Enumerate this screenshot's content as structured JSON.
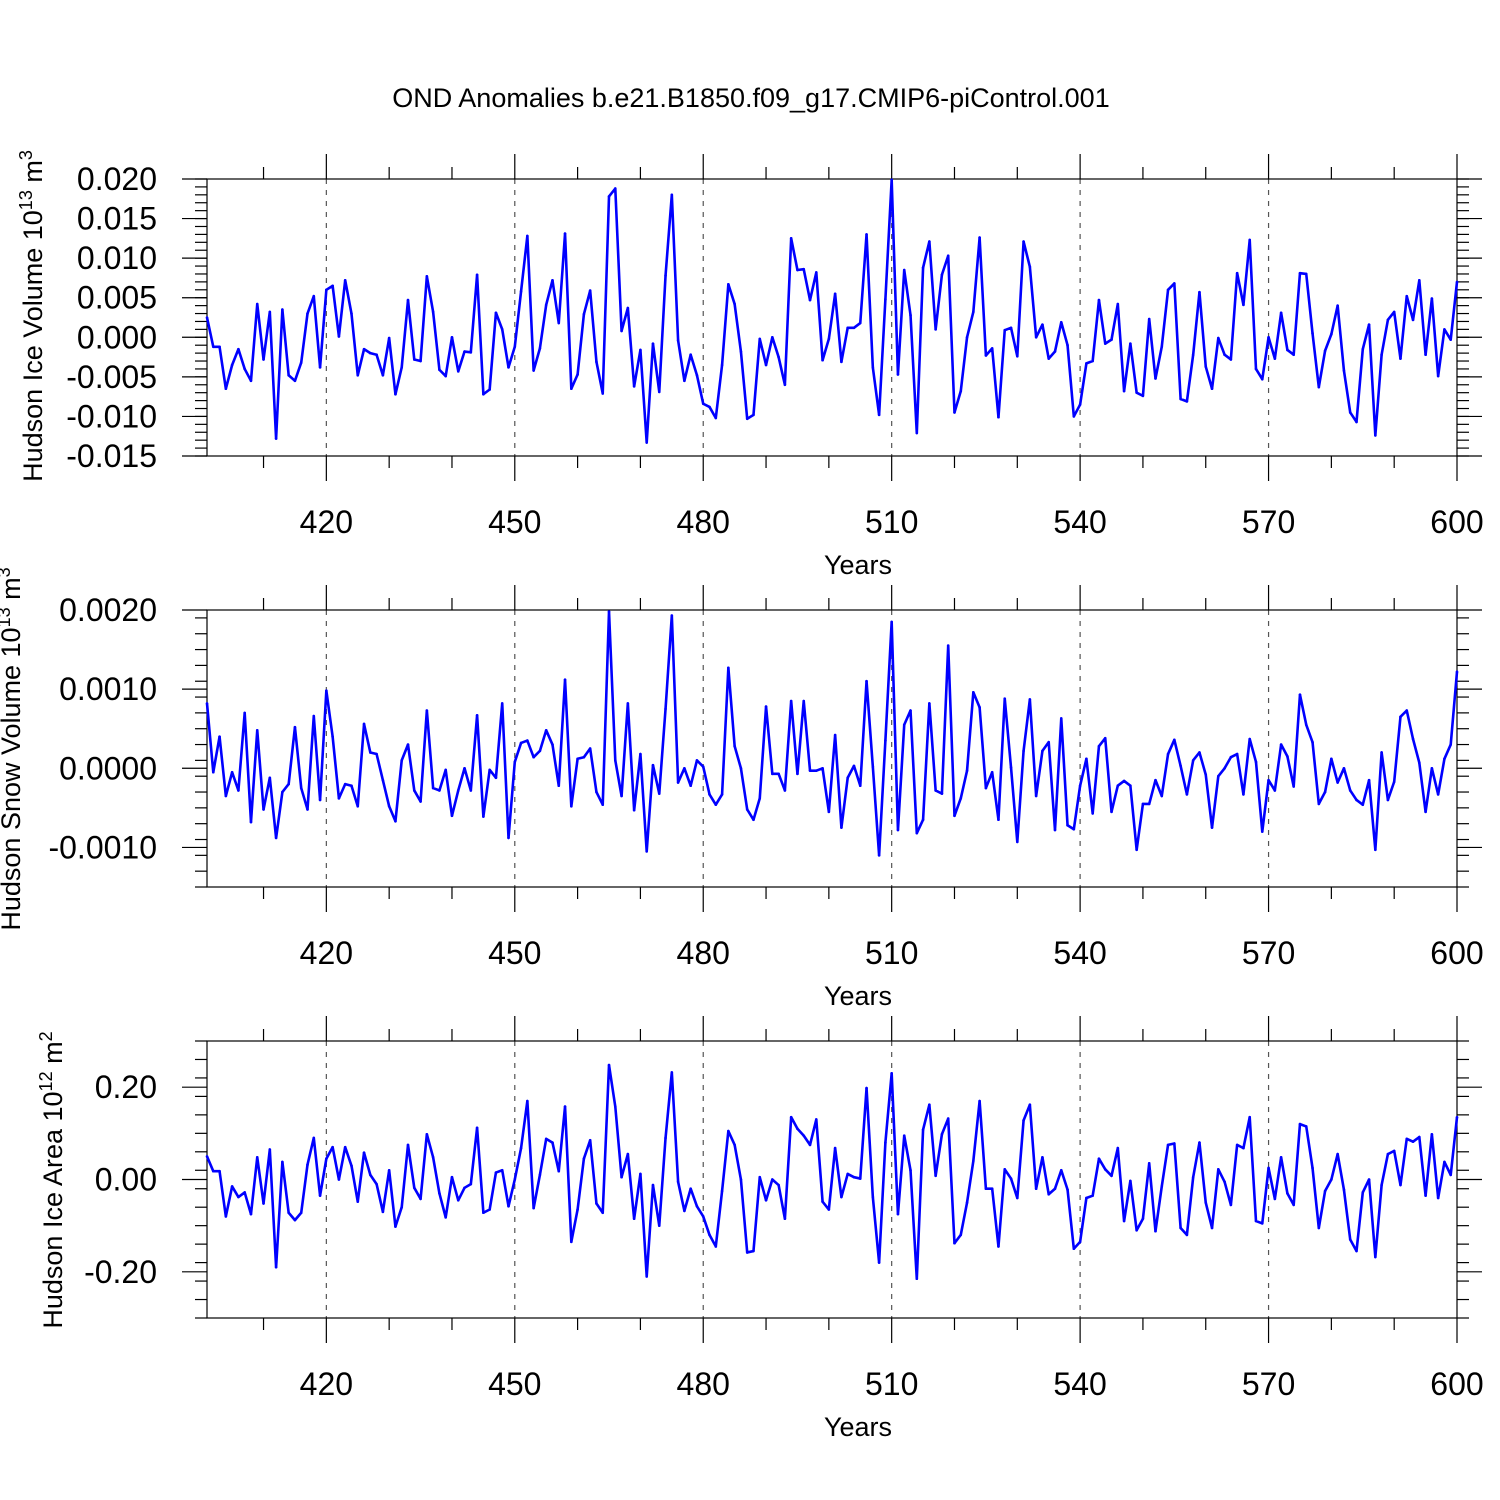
{
  "title": "OND Anomalies b.e21.B1850.f09_g17.CMIP6-piControl.001",
  "colors": {
    "series": "#0000ff",
    "axis": "#000000",
    "grid": "#555555"
  },
  "chart_data": [
    {
      "type": "line",
      "name": "ice-volume",
      "ylabel": {
        "text": "Hudson Ice Volume 10",
        "exp": "13",
        "unit": " m",
        "unit_exp": "3"
      },
      "xlabel": "Years",
      "xlim": [
        401,
        600
      ],
      "ylim": [
        -0.015,
        0.02
      ],
      "xticks": [
        420,
        450,
        480,
        510,
        540,
        570,
        600
      ],
      "xtick_labels": [
        "420",
        "450",
        "480",
        "510",
        "540",
        "570",
        "600"
      ],
      "yticks": [
        -0.015,
        -0.01,
        -0.005,
        0.0,
        0.005,
        0.01,
        0.015,
        0.02
      ],
      "ytick_labels": [
        "-0.015",
        "-0.010",
        "-0.005",
        "0.000",
        "0.005",
        "0.010",
        "0.015",
        "0.020"
      ],
      "grid": "dashed vertical at major x ticks",
      "x_start": 401,
      "values": [
        0.0025,
        -0.0012,
        -0.0012,
        -0.0065,
        -0.0035,
        -0.0015,
        -0.004,
        -0.0055,
        0.0042,
        -0.0028,
        0.0032,
        -0.0128,
        0.0035,
        -0.0048,
        -0.0055,
        -0.0032,
        0.003,
        0.0052,
        -0.0038,
        0.006,
        0.0065,
        0.0001,
        0.0072,
        0.003,
        -0.0048,
        -0.0015,
        -0.002,
        -0.0022,
        -0.0048,
        -0.0001,
        -0.0072,
        -0.0038,
        0.0047,
        -0.0028,
        -0.003,
        0.0077,
        0.0032,
        -0.0041,
        -0.0049,
        0.0,
        -0.0043,
        -0.0018,
        -0.0019,
        0.0079,
        -0.0072,
        -0.0066,
        0.0031,
        0.001,
        -0.0038,
        -0.0012,
        0.0058,
        0.0128,
        -0.0042,
        -0.0014,
        0.0041,
        0.0072,
        0.0018,
        0.0131,
        -0.0065,
        -0.0047,
        0.0029,
        0.0059,
        -0.0031,
        -0.0071,
        0.0178,
        0.0188,
        0.0008,
        0.0037,
        -0.0062,
        -0.0016,
        -0.0133,
        -0.0008,
        -0.0069,
        0.0078,
        0.018,
        -0.0004,
        -0.0055,
        -0.0022,
        -0.0048,
        -0.0084,
        -0.0088,
        -0.0102,
        -0.0035,
        0.0067,
        0.0042,
        -0.0018,
        -0.0103,
        -0.0098,
        -0.0002,
        -0.0035,
        0.0,
        -0.0025,
        -0.006,
        0.0125,
        0.0085,
        0.0086,
        0.0047,
        0.0082,
        -0.0029,
        -0.0002,
        0.0055,
        -0.0031,
        0.0012,
        0.0012,
        0.0018,
        0.013,
        -0.0038,
        -0.0098,
        0.0048,
        0.0199,
        -0.0047,
        0.0085,
        0.0028,
        -0.0121,
        0.0088,
        0.0121,
        0.001,
        0.0079,
        0.0103,
        -0.0095,
        -0.0068,
        0.0,
        0.0032,
        0.0126,
        -0.0023,
        -0.0014,
        -0.0101,
        0.0009,
        0.0012,
        -0.0024,
        0.0121,
        0.0089,
        0.0,
        0.0016,
        -0.0027,
        -0.0018,
        0.0019,
        -0.001,
        -0.01,
        -0.0085,
        -0.0033,
        -0.003,
        0.0047,
        -0.0008,
        -0.0003,
        0.0042,
        -0.0068,
        -0.0008,
        -0.007,
        -0.0074,
        0.0023,
        -0.0052,
        -0.0012,
        0.006,
        0.0068,
        -0.0078,
        -0.0081,
        -0.0022,
        0.0057,
        -0.0037,
        -0.0065,
        -0.0001,
        -0.0022,
        -0.0028,
        0.0081,
        0.0041,
        0.0123,
        -0.004,
        -0.0053,
        0.0,
        -0.0027,
        0.0031,
        -0.0016,
        -0.0022,
        0.0081,
        0.008,
        0.0005,
        -0.0063,
        -0.0017,
        0.0004,
        0.004,
        -0.0042,
        -0.0095,
        -0.0107,
        -0.0015,
        0.0016,
        -0.0124,
        -0.0022,
        0.0022,
        0.0032,
        -0.0027,
        0.0052,
        0.0022,
        0.0072,
        -0.0022,
        0.0049,
        -0.0049,
        0.001,
        -0.0003,
        0.007
      ]
    },
    {
      "type": "line",
      "name": "snow-volume",
      "ylabel": {
        "text": "Hudson Snow Volume 10",
        "exp": "13",
        "unit": " m",
        "unit_exp": "3"
      },
      "xlabel": "Years",
      "xlim": [
        401,
        600
      ],
      "ylim": [
        -0.0015,
        0.002
      ],
      "xticks": [
        420,
        450,
        480,
        510,
        540,
        570,
        600
      ],
      "xtick_labels": [
        "420",
        "450",
        "480",
        "510",
        "540",
        "570",
        "600"
      ],
      "yticks": [
        -0.001,
        0.0,
        0.001,
        0.002
      ],
      "ytick_labels": [
        "-0.0010",
        "0.0000",
        "0.0010",
        "0.0020"
      ],
      "grid": "dashed vertical at major x ticks",
      "x_start": 401,
      "values": [
        0.00082,
        -5e-05,
        0.0004,
        -0.00035,
        -5e-05,
        -0.00028,
        0.0007,
        -0.00068,
        0.00048,
        -0.00052,
        -0.00012,
        -0.00088,
        -0.0003,
        -0.0002,
        0.00052,
        -0.00025,
        -0.00052,
        0.00066,
        -0.0004,
        0.00098,
        0.0004,
        -0.00038,
        -0.0002,
        -0.00022,
        -0.00048,
        0.00056,
        0.0002,
        0.00018,
        -0.00015,
        -0.00048,
        -0.00067,
        0.0001,
        0.0003,
        -0.00028,
        -0.00042,
        0.00073,
        -0.00025,
        -0.00028,
        -2e-05,
        -0.0006,
        -0.00028,
        0.0,
        -0.00028,
        0.00067,
        -0.00061,
        -2e-05,
        -0.00012,
        0.00082,
        -0.00088,
        8e-05,
        0.00032,
        0.00035,
        0.00014,
        0.00022,
        0.00048,
        0.0003,
        -0.00022,
        0.00112,
        -0.00048,
        0.00012,
        0.00014,
        0.00025,
        -0.0003,
        -0.00046,
        0.00198,
        0.0001,
        -0.00035,
        0.00082,
        -0.00053,
        0.00018,
        -0.00105,
        4e-05,
        -0.00032,
        0.00075,
        0.00193,
        -0.00018,
        0.0,
        -0.00022,
        0.0001,
        2e-05,
        -0.00033,
        -0.00046,
        -0.00033,
        0.00127,
        0.00028,
        0.0,
        -0.00052,
        -0.00065,
        -0.00038,
        0.00078,
        -7e-05,
        -7e-05,
        -0.00028,
        0.00085,
        -7e-05,
        0.00085,
        -3e-05,
        -3e-05,
        0.0,
        -0.00055,
        0.00042,
        -0.00075,
        -0.00012,
        3e-05,
        -0.00022,
        0.0011,
        2e-05,
        -0.0011,
        0.00035,
        0.00185,
        -0.00078,
        0.00055,
        0.00073,
        -0.00082,
        -0.00065,
        0.00082,
        -0.00028,
        -0.00032,
        0.00155,
        -0.0006,
        -0.00038,
        -3e-05,
        0.00096,
        0.00077,
        -0.00025,
        -5e-05,
        -0.00065,
        0.00088,
        1e-05,
        -0.00093,
        0.00022,
        0.00087,
        -0.00035,
        0.00022,
        0.00033,
        -0.00078,
        0.00063,
        -0.00072,
        -0.00077,
        -0.00022,
        0.00012,
        -0.00057,
        0.00028,
        0.00038,
        -0.00055,
        -0.00022,
        -0.00016,
        -0.00022,
        -0.00103,
        -0.00045,
        -0.00045,
        -0.00015,
        -0.00035,
        0.00018,
        0.00036,
        3e-05,
        -0.00033,
        0.0001,
        0.0002,
        -8e-05,
        -0.00075,
        -0.0001,
        -0.0,
        0.00014,
        0.00018,
        -0.00033,
        0.00037,
        8e-05,
        -0.0008,
        -0.00015,
        -0.00028,
        0.0003,
        0.00015,
        -0.00023,
        0.00093,
        0.00055,
        0.00033,
        -0.00045,
        -0.0003,
        0.00012,
        -0.00018,
        0.0,
        -0.00028,
        -0.0004,
        -0.00046,
        -0.00015,
        -0.00103,
        0.0002,
        -0.0004,
        -0.00017,
        0.00065,
        0.00073,
        0.00037,
        7e-05,
        -0.00055,
        0.0,
        -0.00033,
        0.00012,
        0.0003,
        0.00122
      ]
    },
    {
      "type": "line",
      "name": "ice-area",
      "ylabel": {
        "text": "Hudson Ice Area 10",
        "exp": "12",
        "unit": " m",
        "unit_exp": "2"
      },
      "xlabel": "Years",
      "xlim": [
        401,
        600
      ],
      "ylim": [
        -0.3,
        0.3
      ],
      "xticks": [
        420,
        450,
        480,
        510,
        540,
        570,
        600
      ],
      "xtick_labels": [
        "420",
        "450",
        "480",
        "510",
        "540",
        "570",
        "600"
      ],
      "yticks": [
        -0.2,
        0.0,
        0.2
      ],
      "ytick_labels": [
        "-0.20",
        "0.00",
        "0.20"
      ],
      "grid": "dashed vertical at major x ticks",
      "x_start": 401,
      "values": [
        0.05,
        0.018,
        0.018,
        -0.08,
        -0.015,
        -0.038,
        -0.028,
        -0.075,
        0.048,
        -0.052,
        0.065,
        -0.19,
        0.038,
        -0.072,
        -0.088,
        -0.072,
        0.032,
        0.09,
        -0.035,
        0.045,
        0.07,
        0.0,
        0.07,
        0.03,
        -0.048,
        0.058,
        0.01,
        -0.01,
        -0.07,
        0.02,
        -0.102,
        -0.06,
        0.075,
        -0.018,
        -0.042,
        0.098,
        0.048,
        -0.03,
        -0.082,
        0.005,
        -0.045,
        -0.018,
        -0.01,
        0.112,
        -0.072,
        -0.065,
        0.015,
        0.02,
        -0.058,
        0.0,
        0.068,
        0.17,
        -0.062,
        0.01,
        0.088,
        0.08,
        0.018,
        0.158,
        -0.135,
        -0.065,
        0.045,
        0.085,
        -0.052,
        -0.072,
        0.248,
        0.158,
        0.005,
        0.055,
        -0.085,
        0.012,
        -0.21,
        -0.012,
        -0.1,
        0.09,
        0.232,
        -0.005,
        -0.068,
        -0.02,
        -0.058,
        -0.08,
        -0.12,
        -0.145,
        -0.025,
        0.105,
        0.075,
        0.0,
        -0.158,
        -0.155,
        0.005,
        -0.045,
        0.0,
        -0.012,
        -0.085,
        0.135,
        0.11,
        0.095,
        0.075,
        0.13,
        -0.048,
        -0.065,
        0.068,
        -0.038,
        0.012,
        0.005,
        0.002,
        0.198,
        -0.038,
        -0.18,
        0.08,
        0.23,
        -0.075,
        0.095,
        0.02,
        -0.215,
        0.108,
        0.162,
        0.008,
        0.098,
        0.132,
        -0.138,
        -0.12,
        -0.05,
        0.04,
        0.17,
        -0.02,
        -0.02,
        -0.145,
        0.022,
        0.002,
        -0.04,
        0.128,
        0.162,
        -0.02,
        0.048,
        -0.032,
        -0.02,
        0.02,
        -0.022,
        -0.15,
        -0.135,
        -0.04,
        -0.035,
        0.045,
        0.022,
        0.008,
        0.068,
        -0.09,
        -0.003,
        -0.11,
        -0.085,
        0.035,
        -0.112,
        -0.015,
        0.075,
        0.078,
        -0.105,
        -0.12,
        0.005,
        0.08,
        -0.05,
        -0.105,
        0.022,
        -0.005,
        -0.055,
        0.075,
        0.068,
        0.135,
        -0.09,
        -0.095,
        0.025,
        -0.042,
        0.048,
        -0.03,
        -0.055,
        0.12,
        0.115,
        0.025,
        -0.105,
        -0.025,
        0.0,
        0.055,
        -0.022,
        -0.13,
        -0.155,
        -0.028,
        0.0,
        -0.168,
        -0.012,
        0.055,
        0.062,
        -0.012,
        0.088,
        0.082,
        0.092,
        -0.035,
        0.098,
        -0.04,
        0.038,
        0.01,
        0.135
      ]
    }
  ]
}
